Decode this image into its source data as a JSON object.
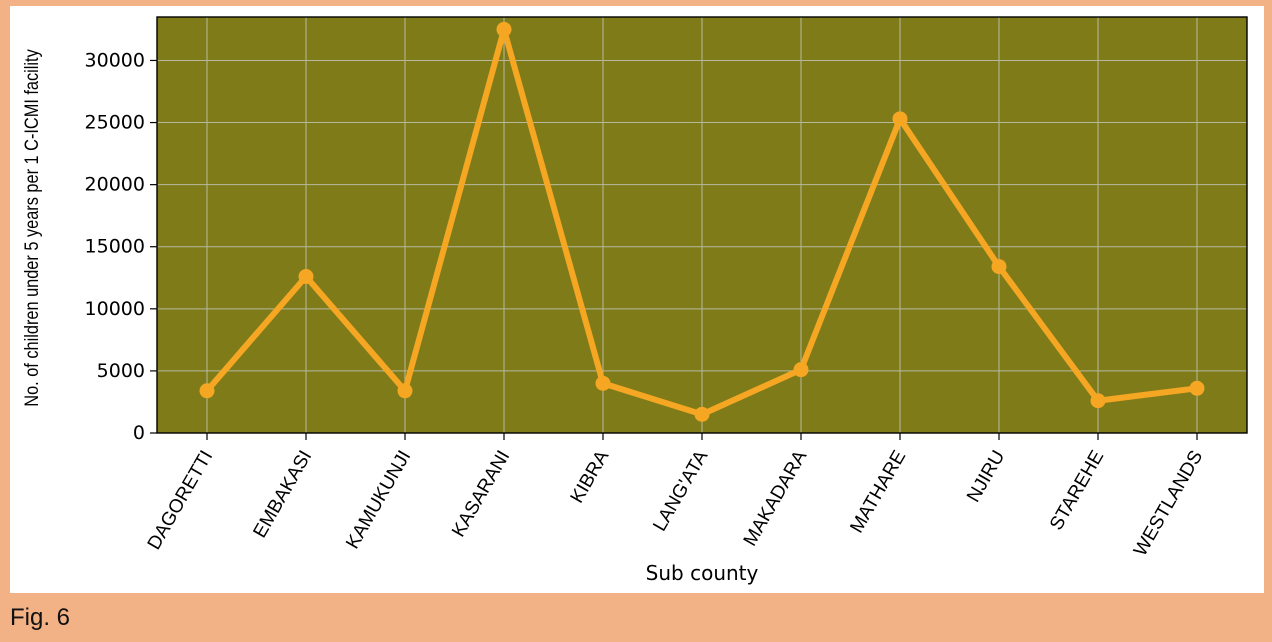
{
  "figure_label": "Fig. 6",
  "colors": {
    "page_background": "#f2b286",
    "plot_background": "#7f7b18",
    "line": "#f5a623",
    "grid": "#b8b8a0"
  },
  "chart_data": {
    "type": "line",
    "title": "",
    "xlabel": "Sub county",
    "ylabel": "No. of children under 5 years per 1 C-ICMI facility",
    "categories": [
      "DAGORETTI",
      "EMBAKASI",
      "KAMUKUNJI",
      "KASARANI",
      "KIBRA",
      "LANG'ATA",
      "MAKADARA",
      "MATHARE",
      "NJIRU",
      "STAREHE",
      "WESTLANDS"
    ],
    "values": [
      3400,
      12600,
      3400,
      32500,
      4000,
      1500,
      5100,
      25300,
      13400,
      2600,
      3600
    ],
    "yticks": [
      0,
      5000,
      10000,
      15000,
      20000,
      25000,
      30000
    ],
    "ylim": [
      0,
      33500
    ],
    "grid": true,
    "markers": true
  }
}
